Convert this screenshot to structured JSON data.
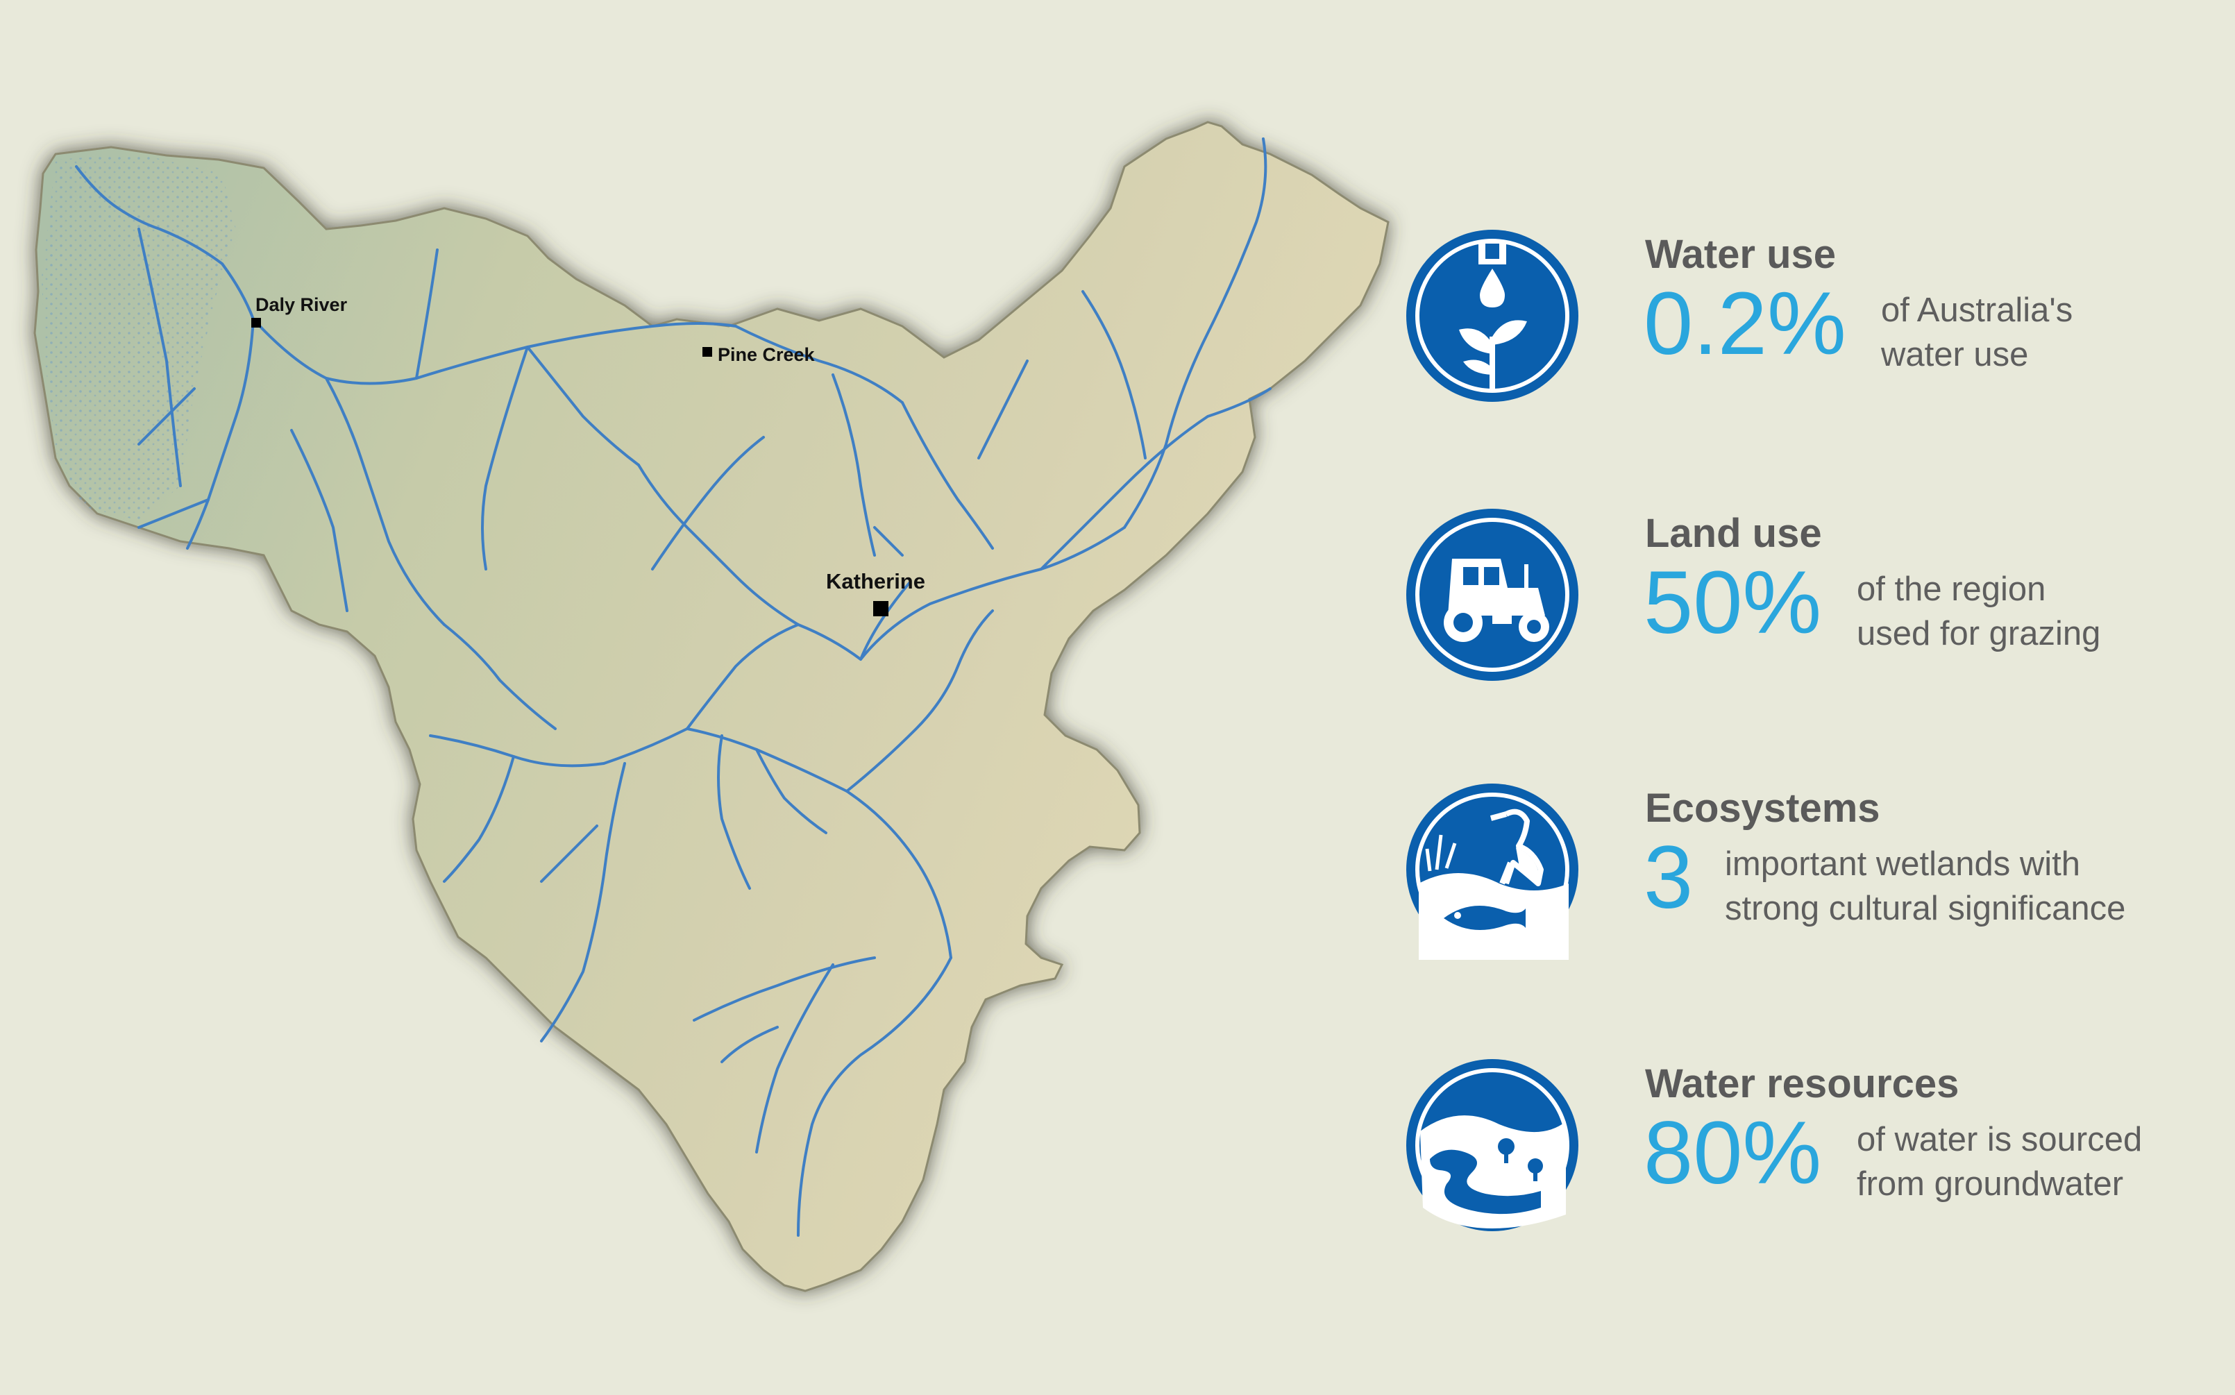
{
  "map": {
    "towns": [
      {
        "name": "Daly River"
      },
      {
        "name": "Pine Creek"
      },
      {
        "name": "Katherine"
      }
    ],
    "colors": {
      "background": "#e8e9da",
      "land_west": "#a9bfa8",
      "land_east": "#ddd7b8",
      "river": "#3f7fc4"
    }
  },
  "stats": [
    {
      "icon": "water-drop-plant-icon",
      "title": "Water use",
      "value": "0.2%",
      "desc_line1": "of Australia's",
      "desc_line2": "water use"
    },
    {
      "icon": "tractor-icon",
      "title": "Land use",
      "value": "50%",
      "desc_line1": "of the region",
      "desc_line2": "used for grazing"
    },
    {
      "icon": "heron-fish-wetland-icon",
      "title": "Ecosystems",
      "value": "3",
      "desc_line1": "important wetlands with",
      "desc_line2": "strong cultural significance"
    },
    {
      "icon": "groundwater-river-icon",
      "title": "Water resources",
      "value": "80%",
      "desc_line1": "of water is sourced",
      "desc_line2": "from groundwater"
    }
  ],
  "colors": {
    "icon_blue": "#0a5fad",
    "value_blue": "#2aa6dd",
    "title_gray": "#5a5a5a",
    "desc_gray": "#5e5e5e"
  }
}
